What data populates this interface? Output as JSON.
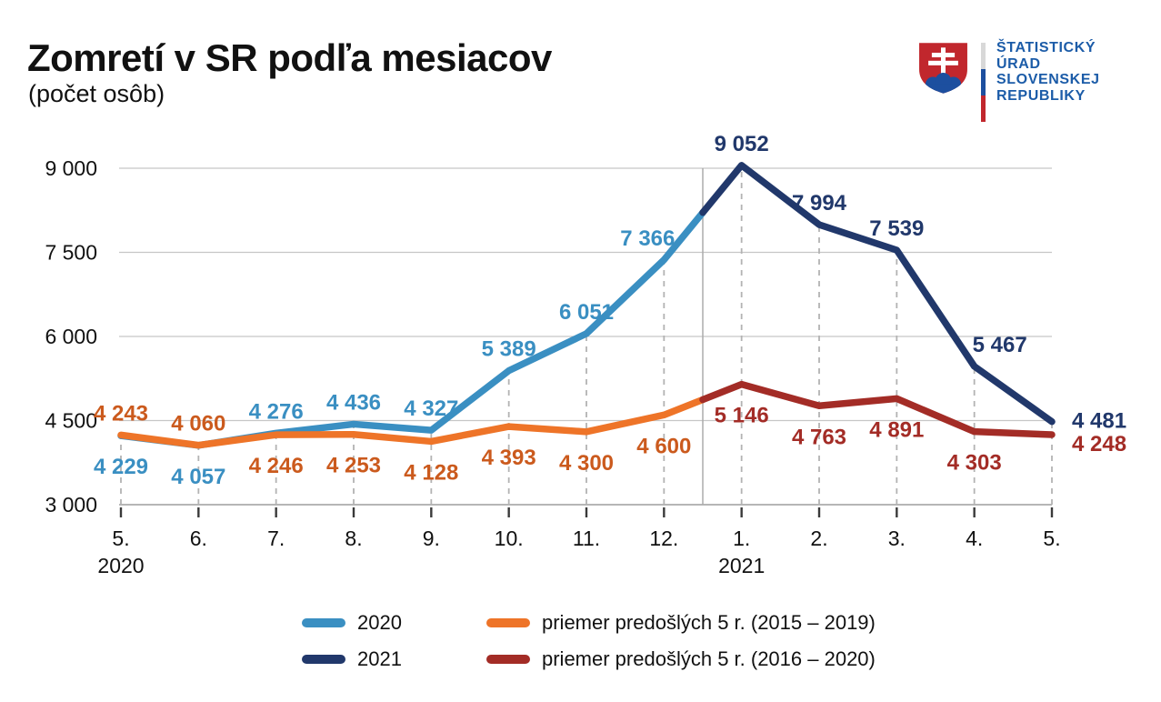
{
  "header": {
    "title": "Zomretí v SR podľa mesiacov",
    "subtitle": "(počet osôb)"
  },
  "logo": {
    "lines": [
      "ŠTATISTICKÝ",
      "ÚRAD",
      "SLOVENSKEJ",
      "REPUBLIKY"
    ],
    "text_color": "#1C5CA8",
    "shield_red": "#C1272D",
    "shield_blue": "#1D4F9F",
    "stripe_colors": [
      "#D8D8D8",
      "#1D4F9F",
      "#C1272D"
    ]
  },
  "chart_data": {
    "type": "line",
    "title": "Zomretí v SR podľa mesiacov",
    "ylabel": "počet osôb",
    "ylim": [
      3000,
      9200
    ],
    "y_ticks": [
      3000,
      4500,
      6000,
      7500,
      9000
    ],
    "grid": true,
    "months": [
      "5.",
      "6.",
      "7.",
      "8.",
      "9.",
      "10.",
      "11.",
      "12.",
      "1.",
      "2.",
      "3.",
      "4.",
      "5."
    ],
    "year_labels": [
      {
        "month_index": 0,
        "label": "2020"
      },
      {
        "month_index": 8,
        "label": "2021"
      }
    ],
    "separator_after_index": 7,
    "colors": {
      "grid": "#C6C6C6",
      "axis": "#9E9E9E",
      "dashed": "#B3B3B3",
      "separator": "#ABABAB",
      "tick": "#3A3A3A",
      "axis_text": "#111111"
    },
    "series": [
      {
        "id": "s2020",
        "name": "2020",
        "color": "#3A8FC2",
        "label_color": "#3A8FC2",
        "start_index": 0,
        "values": [
          4229,
          4057,
          4276,
          4436,
          4327,
          5389,
          6051,
          7366
        ],
        "label_pos": [
          "below",
          "below",
          "above",
          "above",
          "above",
          "above",
          "above",
          "above"
        ],
        "label_dx": [
          0,
          0,
          0,
          0,
          0,
          0,
          0,
          -18
        ]
      },
      {
        "id": "s2021",
        "name": "2021",
        "color": "#21386B",
        "label_color": "#21386B",
        "start_index": 8,
        "values": [
          9052,
          7994,
          7539,
          5467,
          4481
        ],
        "label_pos": [
          "above",
          "above",
          "above",
          "above",
          "right"
        ],
        "label_dx": [
          0,
          0,
          0,
          28,
          0
        ]
      },
      {
        "id": "avg1519",
        "name": "priemer predošlých 5 r. (2015 – 2019)",
        "color": "#EE7428",
        "label_color": "#CB5A1D",
        "start_index": 0,
        "values": [
          4243,
          4060,
          4246,
          4253,
          4128,
          4393,
          4300,
          4600
        ],
        "label_pos": [
          "above",
          "above",
          "below",
          "below",
          "below",
          "below",
          "below",
          "below"
        ]
      },
      {
        "id": "avg1620",
        "name": "priemer predošlých 5 r. (2016 – 2020)",
        "color": "#A32C26",
        "label_color": "#A32C26",
        "start_index": 8,
        "values": [
          5146,
          4763,
          4891,
          4303,
          4248
        ],
        "label_pos": [
          "below",
          "below",
          "below",
          "below",
          "right"
        ],
        "label_dy": [
          0,
          0,
          0,
          0,
          11
        ]
      }
    ],
    "links": [
      [
        "s2020",
        "s2021"
      ],
      [
        "avg1519",
        "avg1620"
      ]
    ],
    "legend": [
      {
        "series": "s2020",
        "row": 0,
        "col": 0
      },
      {
        "series": "s2021",
        "row": 1,
        "col": 0
      },
      {
        "series": "avg1519",
        "row": 0,
        "col": 1
      },
      {
        "series": "avg1620",
        "row": 1,
        "col": 1
      }
    ]
  }
}
